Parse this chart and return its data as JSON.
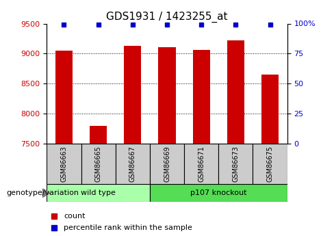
{
  "title": "GDS1931 / 1423255_at",
  "samples": [
    "GSM86663",
    "GSM86665",
    "GSM86667",
    "GSM86669",
    "GSM86671",
    "GSM86673",
    "GSM86675"
  ],
  "counts": [
    9050,
    7800,
    9130,
    9110,
    9060,
    9220,
    8650
  ],
  "percentile_ranks": [
    99,
    99,
    99,
    99,
    99,
    99,
    99
  ],
  "ylim_left": [
    7500,
    9500
  ],
  "ylim_right": [
    0,
    100
  ],
  "yticks_left": [
    7500,
    8000,
    8500,
    9000,
    9500
  ],
  "yticks_right": [
    0,
    25,
    50,
    75,
    100
  ],
  "ytick_labels_right": [
    "0",
    "25",
    "50",
    "75",
    "100%"
  ],
  "bar_color": "#cc0000",
  "dot_color": "#0000cc",
  "group1_label": "wild type",
  "group2_label": "p107 knockout",
  "group1_indices": [
    0,
    1,
    2
  ],
  "group2_indices": [
    3,
    4,
    5,
    6
  ],
  "group_label_prefix": "genotype/variation",
  "legend_count_label": "count",
  "legend_percentile_label": "percentile rank within the sample",
  "grid_color": "#000000",
  "tick_label_color_left": "#cc0000",
  "tick_label_color_right": "#0000cc",
  "group1_bg": "#aaffaa",
  "group2_bg": "#55dd55",
  "sample_box_bg": "#cccccc"
}
